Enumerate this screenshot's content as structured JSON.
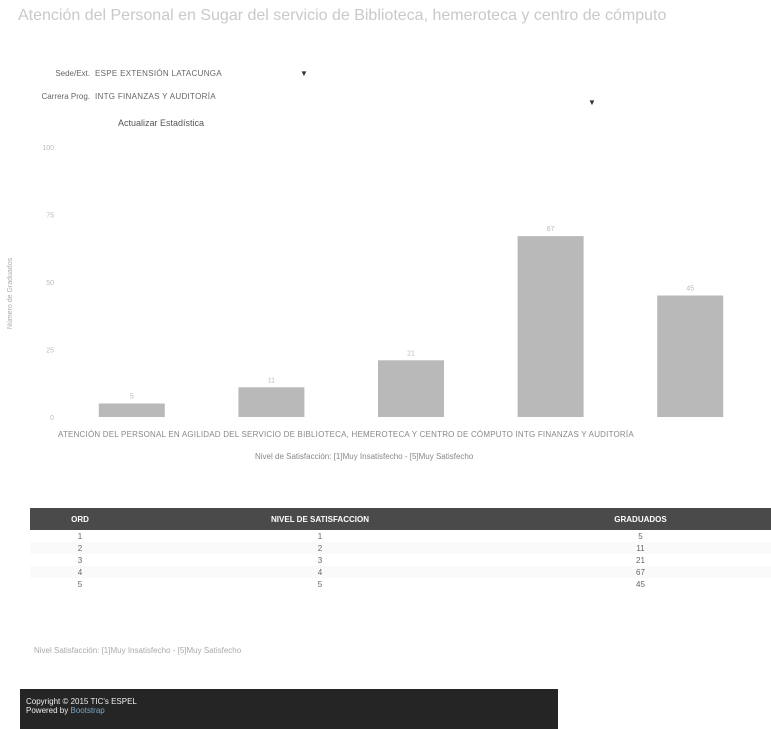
{
  "page": {
    "title": "Atención del Personal en Sugar del servicio de Biblioteca, hemeroteca y centro de cómputo"
  },
  "form": {
    "sede_label": "Sede/Ext.",
    "sede_value": "ESPE EXTENSIÓN LATACUNGA",
    "carrera_label": "Carrera Prog.",
    "carrera_value": "INTG FINANZAS Y AUDITORÍA",
    "update_label": "Actualizar Estadística"
  },
  "chart_data": {
    "type": "bar",
    "categories": [
      "ATENCIÓN DEL PERSONAL EN",
      "AGILIDAD DEL SERVICIO DE BIBLIOTECA, HEMEROTECA Y CENTRO DE CÓMPUTO",
      "",
      "",
      "INTG FINANZAS Y AUDITORÍA"
    ],
    "x_labels_text": "ATENCIÓN DEL PERSONAL EN   AGILIDAD DEL SERVICIO DE BIBLIOTECA, HEMEROTECA Y CENTRO DE CÓMPUTO   INTG FINANZAS Y AUDITORÍA",
    "values": [
      5,
      11,
      21,
      67,
      45
    ],
    "value_labels": [
      "5",
      "11",
      "21",
      "67",
      "45"
    ],
    "y_ticks": [
      "100",
      "75",
      "50",
      "25",
      "0"
    ],
    "ylim": [
      0,
      100
    ],
    "ylabel": "Número de Graduados",
    "xlabel": "Nivel de Satisfacción: [1]Muy Insatisfecho - [5]Muy Satisfecho",
    "bar_color": "#b9b9b9",
    "grid": false
  },
  "table": {
    "headers": [
      "ORD",
      "NIVEL DE SATISFACCION",
      "GRADUADOS"
    ],
    "rows": [
      [
        "1",
        "1",
        "5"
      ],
      [
        "2",
        "2",
        "11"
      ],
      [
        "3",
        "3",
        "21"
      ],
      [
        "4",
        "4",
        "67"
      ],
      [
        "5",
        "5",
        "45"
      ]
    ],
    "header_color": "#4a4a4a"
  },
  "note": "Nivel Satisfacción: [1]Muy Insatisfecho - [5]Muy Satisfecho",
  "footer": {
    "copyright": "Copyright © 2015 TIC's ESPEL",
    "powered_prefix": "Powered by",
    "powered_link": "Bootstrap"
  },
  "icons": {
    "dropdown": "caret-down-icon"
  }
}
